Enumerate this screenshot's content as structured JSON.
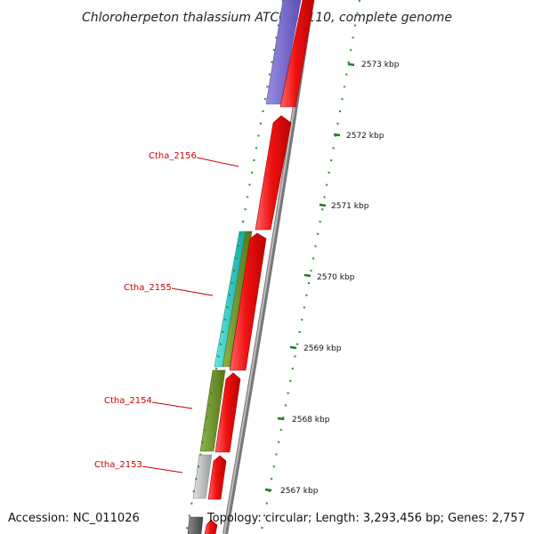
{
  "title": "Chloroherpeton thalassium ATCC 35110, complete genome",
  "footer": {
    "accession": "Accession: NC_011026",
    "topology": "Topology: circular; Length: 3,293,456 bp; Genes: 2,757"
  },
  "scale": {
    "unit": "kbp",
    "ticks": [
      {
        "value": 2573,
        "label": "2573 kbp"
      },
      {
        "value": 2572,
        "label": "2572 kbp"
      },
      {
        "value": 2571,
        "label": "2571 kbp"
      },
      {
        "value": 2570,
        "label": "2570 kbp"
      },
      {
        "value": 2569,
        "label": "2569 kbp"
      },
      {
        "value": 2568,
        "label": "2568 kbp"
      },
      {
        "value": 2567,
        "label": "2567 kbp"
      }
    ]
  },
  "gene_labels": [
    "Ctha_2156",
    "Ctha_2155",
    "Ctha_2154",
    "Ctha_2153"
  ],
  "colors": {
    "cds_red": "#ee1111",
    "purple": "#7766cc",
    "cyan": "#22cccc",
    "olive": "#6b8e23",
    "silver": "#bbbbbb",
    "dark_gray": "#666666",
    "backbone": "#888888",
    "scale_green": "#228b22",
    "label_red": "#cc0000"
  }
}
